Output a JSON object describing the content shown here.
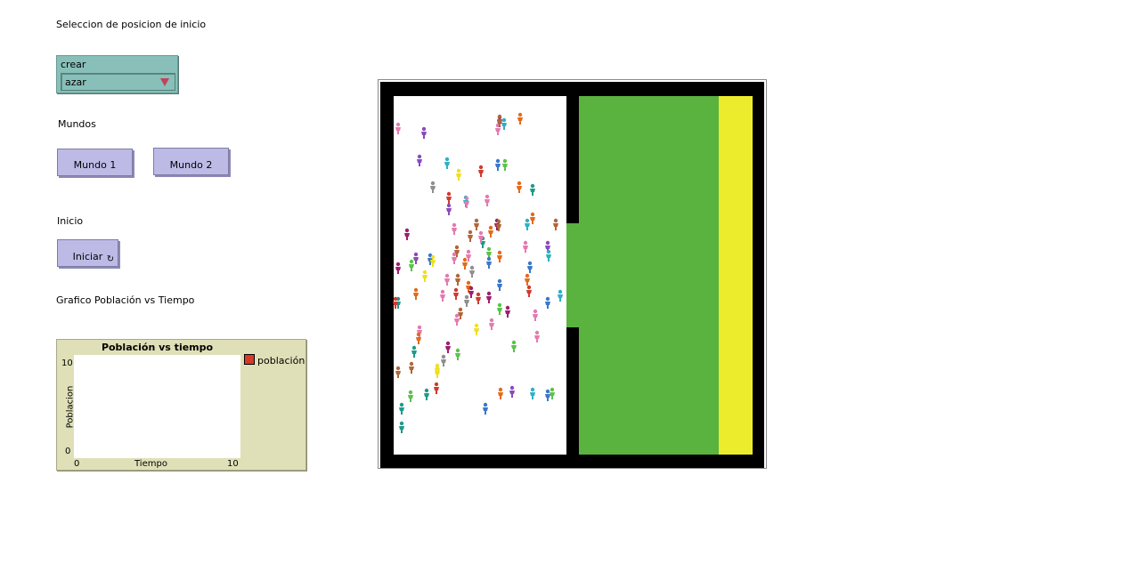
{
  "labels": {
    "start_position": "Seleccion de posicion de inicio",
    "worlds": "Mundos",
    "start": "Inicio",
    "chart_heading": "Grafico Población vs Tiempo"
  },
  "chooser": {
    "label": "crear",
    "value": "azar"
  },
  "buttons": {
    "world1": "Mundo 1",
    "world2": "Mundo 2",
    "run": "Iniciar"
  },
  "plot": {
    "title": "Población vs tiempo",
    "xlabel": "Tiempo",
    "ylabel": "Poblacion",
    "x_min": "0",
    "x_max": "10",
    "y_min": "0",
    "y_max": "10",
    "legend": "población"
  },
  "colors": {
    "wall": "#000000",
    "floor": "#ffffff",
    "grass": "#5ab23f",
    "exit": "#ecec2c",
    "chooser": "#88bfb8",
    "button": "#bdbbe6",
    "plot_bg": "#e0e0b8",
    "series": "#d73a2a"
  },
  "chart_data": {
    "type": "line",
    "title": "Población vs tiempo",
    "xlabel": "Tiempo",
    "ylabel": "Poblacion",
    "xlim": [
      0,
      10
    ],
    "ylim": [
      0,
      10
    ],
    "series": [
      {
        "name": "población",
        "color": "#d73a2a",
        "values": []
      }
    ]
  }
}
